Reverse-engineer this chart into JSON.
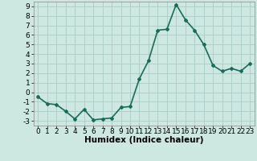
{
  "x": [
    0,
    1,
    2,
    3,
    4,
    5,
    6,
    7,
    8,
    9,
    10,
    11,
    12,
    13,
    14,
    15,
    16,
    17,
    18,
    19,
    20,
    21,
    22,
    23
  ],
  "y": [
    -0.5,
    -1.2,
    -1.3,
    -2.0,
    -2.8,
    -1.8,
    -2.9,
    -2.8,
    -2.7,
    -1.6,
    -1.5,
    1.4,
    3.3,
    6.5,
    6.6,
    9.2,
    7.6,
    6.5,
    5.0,
    2.8,
    2.2,
    2.5,
    2.2,
    3.0
  ],
  "line_color": "#1a6b5a",
  "marker": "D",
  "marker_size": 2,
  "xlabel": "Humidex (Indice chaleur)",
  "xlim": [
    -0.5,
    23.5
  ],
  "ylim": [
    -3.5,
    9.5
  ],
  "yticks": [
    -3,
    -2,
    -1,
    0,
    1,
    2,
    3,
    4,
    5,
    6,
    7,
    8,
    9
  ],
  "xticks": [
    0,
    1,
    2,
    3,
    4,
    5,
    6,
    7,
    8,
    9,
    10,
    11,
    12,
    13,
    14,
    15,
    16,
    17,
    18,
    19,
    20,
    21,
    22,
    23
  ],
  "bg_color": "#cce8e0",
  "grid_color": "#aaccc4",
  "line_width": 1.2,
  "tick_fontsize": 6.5,
  "xlabel_fontsize": 7.5,
  "xlabel_bold": true
}
